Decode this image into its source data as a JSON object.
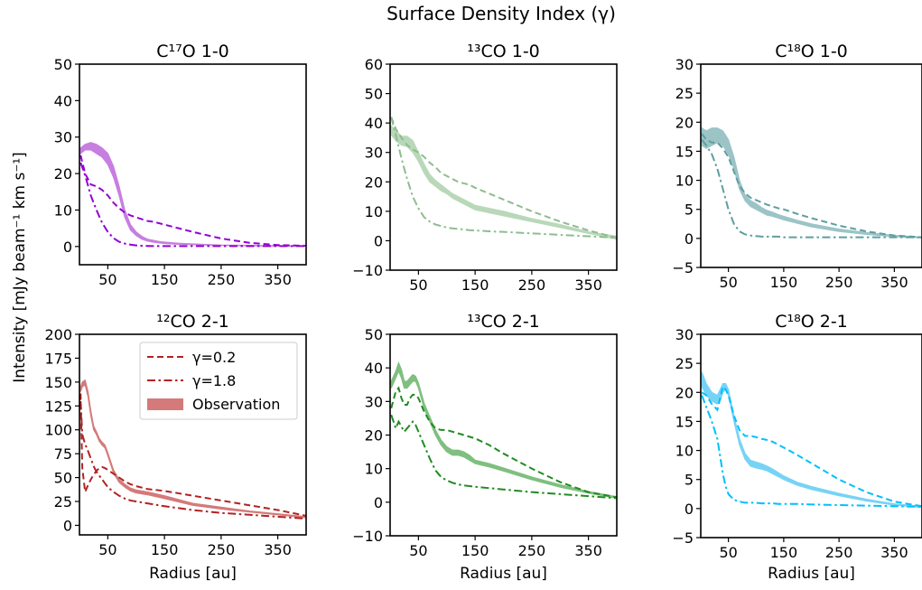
{
  "figure": {
    "suptitle": "Surface Density Index (γ)",
    "ylabel": "Intensity [mJy beam⁻¹ km s⁻¹]",
    "xlabel": "Radius [au]"
  },
  "legend": {
    "entries": [
      {
        "label": "γ=0.2",
        "style": "dashed",
        "color": "#b22222"
      },
      {
        "label": "γ=1.8",
        "style": "dashdot",
        "color": "#b22222"
      },
      {
        "label": "Observation",
        "style": "band",
        "color": "#d47a7a"
      }
    ]
  },
  "chart_data": [
    {
      "type": "line",
      "title": "C¹⁷O 1-0",
      "color": "#9400d3",
      "obs_color": "#c77ee0",
      "xlim": [
        0,
        400
      ],
      "ylim": [
        -5,
        50
      ],
      "xticks": [
        50,
        150,
        250,
        350
      ],
      "yticks": [
        0,
        10,
        20,
        30,
        40,
        50
      ],
      "show_xlabel": false,
      "x": [
        2,
        10,
        20,
        30,
        40,
        50,
        60,
        70,
        80,
        90,
        100,
        110,
        120,
        130,
        140,
        150,
        175,
        200,
        250,
        300,
        350,
        400
      ],
      "observation_low": [
        25.5,
        26.5,
        26.5,
        25.5,
        24.5,
        22.5,
        19,
        14,
        8,
        4.5,
        3,
        2,
        1.5,
        1.2,
        1,
        0.8,
        0.6,
        0.5,
        0.3,
        0.2,
        0.1,
        0.1
      ],
      "observation_high": [
        27,
        28,
        28.5,
        28,
        27,
        25.5,
        22,
        16.5,
        10,
        6,
        4,
        2.8,
        2,
        1.7,
        1.4,
        1.2,
        0.9,
        0.7,
        0.4,
        0.3,
        0.2,
        0.1
      ],
      "series": [
        {
          "name": "γ=0.2",
          "style": "dashed",
          "values": [
            25,
            20,
            17,
            16.5,
            15.5,
            14,
            12,
            10.5,
            9.3,
            8.5,
            8,
            7.5,
            7,
            6.8,
            6.4,
            6,
            5,
            4,
            2.2,
            1,
            0.4,
            0.2
          ]
        },
        {
          "name": "γ=1.8",
          "style": "dashdot",
          "values": [
            23,
            19.5,
            14,
            10,
            6.5,
            4,
            2.3,
            1.3,
            0.8,
            0.5,
            0.3,
            0.2,
            0.15,
            0.1,
            0.1,
            0.1,
            0.1,
            0.1,
            0.1,
            0.1,
            0.1,
            0.1
          ]
        }
      ]
    },
    {
      "type": "line",
      "title": "¹³CO 1-0",
      "color": "#8fbc8f",
      "obs_color": "#b9d8b9",
      "xlim": [
        0,
        400
      ],
      "ylim": [
        -10,
        60
      ],
      "xticks": [
        50,
        150,
        250,
        350
      ],
      "yticks": [
        -10,
        0,
        10,
        20,
        30,
        40,
        50,
        60
      ],
      "show_xlabel": false,
      "x": [
        2,
        10,
        20,
        30,
        40,
        50,
        60,
        70,
        80,
        90,
        100,
        110,
        120,
        130,
        140,
        150,
        175,
        200,
        250,
        300,
        350,
        400
      ],
      "observation_low": [
        36,
        34,
        32.5,
        32,
        30,
        27,
        23,
        20,
        18.5,
        17,
        16,
        14.5,
        13.5,
        12.5,
        11.5,
        10.5,
        9.5,
        8.5,
        6.5,
        4.5,
        2.5,
        0.5
      ],
      "observation_high": [
        39,
        37.5,
        35.5,
        35.5,
        34,
        30,
        26,
        22.5,
        20.5,
        19,
        17.5,
        16,
        15,
        14,
        13,
        12,
        11,
        10,
        7.5,
        5.5,
        3,
        1.5
      ],
      "series": [
        {
          "name": "γ=0.2",
          "style": "dashed",
          "values": [
            42,
            38,
            35,
            32.5,
            31,
            30,
            28.5,
            26.5,
            25,
            23,
            22,
            21,
            20,
            19.5,
            19,
            18,
            16,
            14,
            10,
            6.5,
            3.5,
            1
          ]
        },
        {
          "name": "γ=1.8",
          "style": "dashdot",
          "values": [
            42,
            36,
            28,
            21,
            15,
            11,
            8,
            6.5,
            5.5,
            5,
            4.5,
            4.2,
            4,
            3.8,
            3.6,
            3.5,
            3.2,
            3,
            2.5,
            2,
            1.5,
            1
          ]
        }
      ]
    },
    {
      "type": "line",
      "title": "C¹⁸O 1-0",
      "color": "#5f9ea0",
      "obs_color": "#9cc4c6",
      "xlim": [
        0,
        400
      ],
      "ylim": [
        -5,
        30
      ],
      "xticks": [
        50,
        150,
        250,
        350
      ],
      "yticks": [
        -5,
        0,
        5,
        10,
        15,
        20,
        25,
        30
      ],
      "show_xlabel": false,
      "x": [
        2,
        10,
        20,
        30,
        40,
        50,
        60,
        70,
        80,
        90,
        100,
        110,
        120,
        130,
        140,
        150,
        175,
        200,
        250,
        300,
        350,
        400
      ],
      "observation_low": [
        16,
        15.5,
        16,
        16.5,
        16,
        14.5,
        12,
        8.5,
        6.5,
        5.5,
        5,
        4.5,
        4,
        3.8,
        3.5,
        3.2,
        2.6,
        2,
        1.2,
        0.7,
        0.3,
        0.1
      ],
      "observation_high": [
        19,
        18.5,
        19,
        19,
        18.5,
        17,
        14,
        10,
        7.5,
        6.5,
        6,
        5.3,
        4.8,
        4.5,
        4.1,
        3.8,
        3.1,
        2.5,
        1.6,
        1,
        0.5,
        0.2
      ],
      "series": [
        {
          "name": "γ=0.2",
          "style": "dashed",
          "values": [
            18,
            17,
            16.5,
            16.5,
            15.5,
            14,
            11.5,
            9,
            7.8,
            7,
            6.6,
            6.2,
            5.8,
            5.5,
            5.2,
            5,
            4.2,
            3.5,
            2.2,
            1.2,
            0.5,
            0.2
          ]
        },
        {
          "name": "γ=1.8",
          "style": "dashdot",
          "values": [
            17,
            16,
            14.5,
            12,
            8.5,
            5,
            2.5,
            1.2,
            0.7,
            0.5,
            0.4,
            0.3,
            0.3,
            0.3,
            0.3,
            0.2,
            0.2,
            0.2,
            0.2,
            0.2,
            0.2,
            0.2
          ]
        }
      ]
    },
    {
      "type": "line",
      "title": "¹²CO 2-1",
      "color": "#b22222",
      "obs_color": "#d47a7a",
      "xlim": [
        0,
        400
      ],
      "ylim": [
        -10,
        200
      ],
      "xticks": [
        50,
        150,
        250,
        350
      ],
      "yticks": [
        0,
        25,
        50,
        75,
        100,
        125,
        150,
        175,
        200
      ],
      "show_xlabel": true,
      "x": [
        2,
        5,
        10,
        15,
        20,
        25,
        30,
        35,
        40,
        45,
        50,
        60,
        70,
        80,
        90,
        100,
        120,
        150,
        200,
        250,
        300,
        350,
        400
      ],
      "observation_low": [
        140,
        145,
        147,
        135,
        115,
        100,
        95,
        88,
        84,
        81,
        73,
        55,
        45,
        40,
        36,
        34,
        32,
        28,
        21,
        17,
        14,
        11,
        8
      ],
      "observation_high": [
        145,
        150,
        152,
        140,
        120,
        104,
        98,
        91,
        87,
        84,
        76,
        58,
        48,
        43,
        39,
        37,
        35,
        31,
        23,
        19,
        15,
        12,
        9
      ],
      "series": [
        {
          "name": "γ=0.2",
          "style": "dashed",
          "values": [
            138,
            60,
            35,
            42,
            48,
            53,
            57,
            60,
            61,
            60,
            58,
            54,
            50,
            46,
            43,
            41,
            38,
            36,
            31,
            26,
            21,
            16,
            10
          ]
        },
        {
          "name": "γ=1.8",
          "style": "dashdot",
          "values": [
            130,
            95,
            85,
            78,
            70,
            62,
            56,
            52,
            48,
            44,
            40,
            35,
            31,
            28,
            26,
            25,
            23,
            20,
            16,
            13,
            11,
            9,
            7
          ]
        }
      ]
    },
    {
      "type": "line",
      "title": "¹³CO 2-1",
      "color": "#228b22",
      "obs_color": "#7fbf7f",
      "xlim": [
        0,
        400
      ],
      "ylim": [
        -10,
        50
      ],
      "xticks": [
        50,
        150,
        250,
        350
      ],
      "yticks": [
        -10,
        0,
        10,
        20,
        30,
        40,
        50
      ],
      "show_xlabel": true,
      "x": [
        2,
        10,
        15,
        20,
        25,
        30,
        35,
        40,
        45,
        50,
        60,
        70,
        80,
        90,
        100,
        110,
        120,
        130,
        140,
        150,
        175,
        200,
        250,
        300,
        350,
        400
      ],
      "observation_low": [
        34,
        37,
        39,
        37,
        34,
        34,
        35,
        36,
        36,
        34,
        28,
        24,
        20,
        17,
        15,
        14,
        14,
        13.5,
        12.5,
        11.5,
        10.5,
        9.3,
        6.7,
        4.5,
        2.7,
        1.2
      ],
      "observation_high": [
        36,
        39,
        41.5,
        39.5,
        36,
        36,
        37,
        38,
        37.5,
        35.5,
        29.5,
        25.5,
        21.5,
        18.5,
        16.5,
        15.5,
        15.5,
        15,
        14,
        12.5,
        11.5,
        10.2,
        7.5,
        5.2,
        3.2,
        1.6
      ],
      "series": [
        {
          "name": "γ=0.2",
          "style": "dashed",
          "values": [
            28,
            33,
            34,
            31,
            29,
            29,
            31,
            32,
            32,
            31,
            27,
            24,
            22,
            21.5,
            21.5,
            21,
            20.5,
            20,
            19.5,
            19,
            17,
            14.5,
            10,
            6,
            3,
            1.5
          ]
        },
        {
          "name": "γ=1.8",
          "style": "dashdot",
          "values": [
            26,
            22,
            24,
            22.5,
            21,
            22,
            23,
            24,
            23,
            21,
            17,
            13,
            9.5,
            7.5,
            6.5,
            5.8,
            5.3,
            5,
            4.8,
            4.6,
            4.2,
            3.8,
            3,
            2.4,
            1.8,
            1.2
          ]
        }
      ]
    },
    {
      "type": "line",
      "title": "C¹⁸O 2-1",
      "color": "#00bfff",
      "obs_color": "#77d3f5",
      "xlim": [
        0,
        400
      ],
      "ylim": [
        -5,
        30
      ],
      "xticks": [
        50,
        150,
        250,
        350
      ],
      "yticks": [
        -5,
        0,
        5,
        10,
        15,
        20,
        25,
        30
      ],
      "show_xlabel": true,
      "x": [
        2,
        10,
        20,
        30,
        35,
        40,
        45,
        50,
        60,
        70,
        80,
        90,
        100,
        110,
        120,
        130,
        140,
        150,
        175,
        200,
        250,
        300,
        350,
        400
      ],
      "observation_low": [
        21,
        19.5,
        18.5,
        18,
        18.5,
        20,
        20.5,
        19.5,
        15,
        11,
        8.5,
        7.3,
        7,
        6.8,
        6.5,
        6,
        5.5,
        5,
        4,
        3.3,
        2.2,
        1.3,
        0.6,
        0.2
      ],
      "observation_high": [
        23.5,
        21.5,
        20,
        19.5,
        20.5,
        21.5,
        21.5,
        20.5,
        16,
        12,
        9.5,
        8.3,
        8,
        7.7,
        7.3,
        6.8,
        6.2,
        5.6,
        4.5,
        3.8,
        2.6,
        1.6,
        0.8,
        0.4
      ],
      "series": [
        {
          "name": "γ=0.2",
          "style": "dashed",
          "values": [
            20,
            19.5,
            18,
            17,
            19,
            21,
            20.5,
            19.5,
            16,
            13.5,
            12.5,
            12.5,
            12.3,
            12,
            11.8,
            11.5,
            11,
            10.5,
            9.2,
            7.8,
            5,
            2.8,
            1.2,
            0.4
          ]
        },
        {
          "name": "γ=1.8",
          "style": "dashdot",
          "values": [
            19.5,
            17.5,
            15,
            12,
            9,
            6,
            3.8,
            2.5,
            1.5,
            1.2,
            1,
            1,
            1,
            0.9,
            0.9,
            0.9,
            0.8,
            0.8,
            0.8,
            0.7,
            0.6,
            0.5,
            0.4,
            0.3
          ]
        }
      ]
    }
  ]
}
